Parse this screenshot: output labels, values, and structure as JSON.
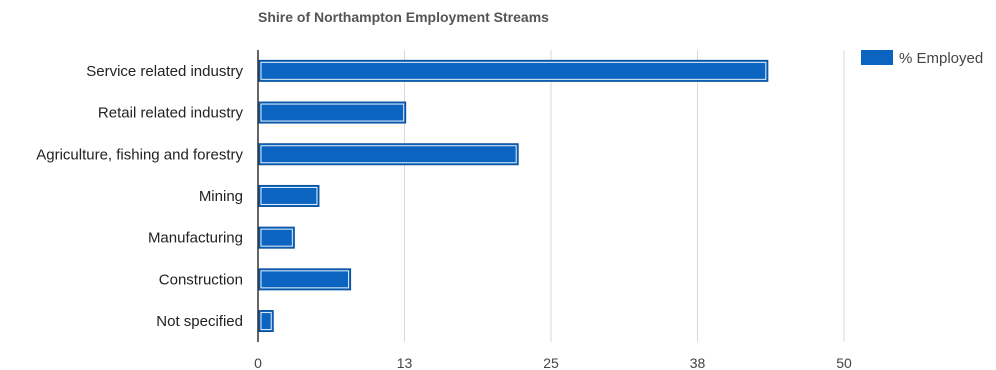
{
  "chart_data": {
    "type": "bar",
    "orientation": "horizontal",
    "title": "Shire of Northampton Employment Streams",
    "xlabel": "",
    "ylabel": "",
    "categories": [
      "Service related industry",
      "Retail related industry",
      "Agriculture, fishing and forestry",
      "Mining",
      "Manufacturing",
      "Construction",
      "Not specified"
    ],
    "series": [
      {
        "name": "% Employed",
        "color": "#0b64c0",
        "values": [
          43.5,
          12.6,
          22.2,
          5.2,
          3.1,
          7.9,
          1.3
        ]
      }
    ],
    "xlim": [
      0,
      50
    ],
    "xticks": [
      0,
      12.5,
      25,
      37.5,
      50
    ],
    "xtick_labels": [
      "0",
      "13",
      "25",
      "38",
      "50"
    ],
    "grid": true,
    "legend": "top-right"
  }
}
